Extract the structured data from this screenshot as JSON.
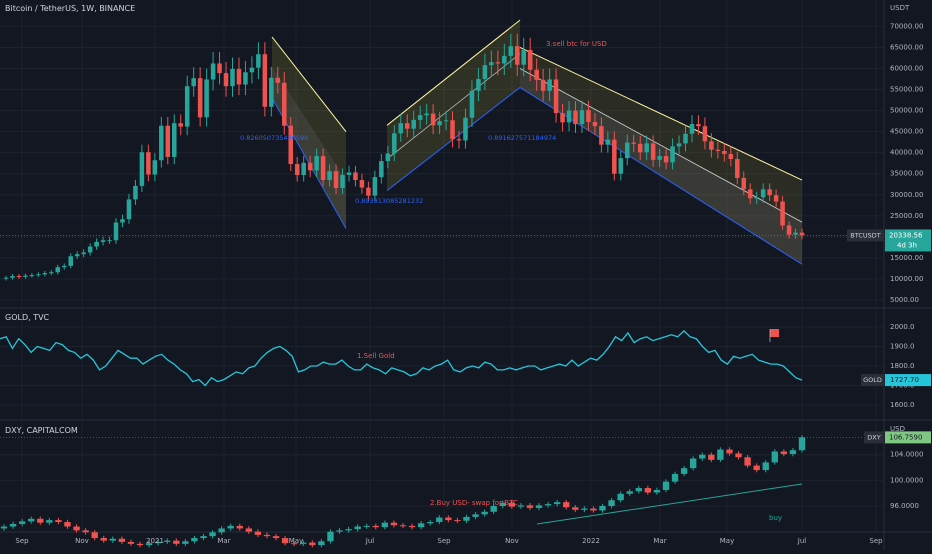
{
  "colors": {
    "background": "#131722",
    "grid": "#1e222d",
    "axis_text": "#b2b5be",
    "up": "#26a69a",
    "down": "#ef5350",
    "gold_line": "#26c6da",
    "annotation_red": "#ef5350",
    "annotation_blue": "#2962ff",
    "annotation_green": "#26a69a"
  },
  "panes": {
    "btc": {
      "title": "Bitcoin / TetherUS, 1W, BINANCE",
      "currency": "USDT",
      "symbol_tag": "BTCUSDT",
      "price_tag": "20338.56",
      "countdown_tag": "4d 3h"
    },
    "gold": {
      "title": "GOLD, TVC",
      "symbol_tag": "GOLD",
      "price_tag": "1727.70"
    },
    "dxy": {
      "title": "DXY, CAPITALCOM",
      "currency": "USD",
      "symbol_tag": "DXY",
      "price_tag": "106.7590"
    }
  },
  "annotations": {
    "sell_btc": "3.sell btc for USD",
    "sell_gold": "1.Sell Gold",
    "buy_usd": "2.Buy USD- swap for BTC",
    "buy": "buy",
    "ratio_1": "0.826050735436590",
    "ratio_2": "0.893913085281232",
    "ratio_3": "0.891627571184974"
  },
  "chart_data": [
    {
      "type": "candlestick",
      "title": "Bitcoin / TetherUS, 1W, BINANCE",
      "ylabel": "USDT",
      "ylim": [
        5000,
        72000
      ],
      "yticks": [
        "70000.00",
        "65000.00",
        "60000.00",
        "55000.00",
        "50000.00",
        "45000.00",
        "40000.00",
        "35000.00",
        "30000.00",
        "25000.00",
        "20000.00",
        "15000.00",
        "10000.00",
        "5000.00"
      ],
      "x_ticks": [
        "Sep",
        "Nov",
        "2021",
        "Mar",
        "May",
        "Jul",
        "Sep",
        "Nov",
        "2022",
        "Mar",
        "May",
        "Jul",
        "Sep"
      ],
      "weekly_close_approx": [
        10300,
        10700,
        10500,
        10800,
        10900,
        11100,
        11400,
        11600,
        12800,
        13100,
        15400,
        15900,
        16300,
        17700,
        18800,
        19200,
        19200,
        23400,
        24200,
        28900,
        32100,
        40100,
        34800,
        38200,
        46400,
        39000,
        47000,
        46200,
        55800,
        57700,
        48400,
        57400,
        61200,
        58900,
        55800,
        59900,
        56200,
        59100,
        60200,
        63400,
        50900,
        57800,
        56600,
        46400,
        37300,
        34700,
        37600,
        35800,
        39200,
        33500,
        35600,
        31600,
        34700,
        35300,
        33500,
        31700,
        29800,
        34200,
        38000,
        39800,
        44600,
        47000,
        45700,
        47800,
        48900,
        49300,
        46500,
        47500,
        47700,
        43200,
        42900,
        48300,
        54700,
        57500,
        60800,
        61500,
        61200,
        63000,
        65300,
        60900,
        64400,
        59700,
        57300,
        54700,
        57400,
        49400,
        47200,
        50000,
        46800,
        50100,
        47300,
        46300,
        41900,
        43100,
        35000,
        38700,
        42400,
        42100,
        40100,
        42200,
        38300,
        39200,
        37700,
        41500,
        42200,
        44500,
        46800,
        46300,
        42700,
        40700,
        40400,
        39700,
        38500,
        34000,
        31300,
        29200,
        29400,
        31300,
        29900,
        28400,
        22700,
        20500,
        21000,
        20338
      ]
    },
    {
      "type": "line",
      "title": "GOLD, TVC",
      "ylim": [
        1600,
        2000
      ],
      "yticks": [
        "2000.0",
        "1900.0",
        "1800.0",
        "1700.0",
        "1600.0"
      ],
      "values_approx": [
        1940,
        1950,
        1890,
        1940,
        1910,
        1870,
        1900,
        1890,
        1880,
        1920,
        1910,
        1880,
        1870,
        1840,
        1860,
        1830,
        1780,
        1800,
        1840,
        1880,
        1860,
        1840,
        1840,
        1810,
        1830,
        1850,
        1860,
        1830,
        1810,
        1780,
        1760,
        1720,
        1730,
        1700,
        1740,
        1720,
        1730,
        1750,
        1770,
        1760,
        1790,
        1800,
        1840,
        1870,
        1890,
        1900,
        1880,
        1850,
        1770,
        1780,
        1800,
        1800,
        1820,
        1810,
        1810,
        1830,
        1800,
        1780,
        1780,
        1810,
        1790,
        1780,
        1760,
        1790,
        1780,
        1770,
        1750,
        1760,
        1790,
        1780,
        1800,
        1810,
        1830,
        1780,
        1770,
        1790,
        1800,
        1790,
        1820,
        1810,
        1780,
        1780,
        1790,
        1780,
        1790,
        1800,
        1800,
        1780,
        1790,
        1800,
        1810,
        1800,
        1830,
        1800,
        1820,
        1840,
        1830,
        1860,
        1900,
        1950,
        1930,
        1970,
        1920,
        1940,
        1950,
        1930,
        1940,
        1950,
        1960,
        1950,
        1980,
        1950,
        1940,
        1900,
        1870,
        1880,
        1830,
        1810,
        1850,
        1840,
        1850,
        1860,
        1830,
        1820,
        1810,
        1810,
        1800,
        1770,
        1740,
        1727.7
      ]
    },
    {
      "type": "candlestick",
      "title": "DXY, CAPITALCOM",
      "ylabel": "USD",
      "ylim": [
        93,
        107
      ],
      "yticks": [
        "104.0000",
        "100.0000",
        "96.0000"
      ],
      "weekly_close_approx": [
        92.8,
        93.2,
        93.6,
        94.0,
        93.4,
        93.8,
        93.5,
        92.8,
        92.2,
        91.9,
        91.0,
        90.6,
        90.9,
        90.4,
        90.1,
        89.9,
        90.2,
        90.4,
        90.6,
        90.1,
        90.5,
        91.0,
        91.3,
        91.9,
        92.5,
        92.9,
        92.5,
        92.0,
        91.5,
        91.3,
        91.0,
        90.2,
        90.1,
        90.3,
        89.9,
        90.5,
        92.0,
        92.2,
        92.4,
        92.8,
        92.9,
        92.7,
        93.4,
        93.0,
        92.9,
        92.7,
        93.3,
        93.5,
        94.2,
        93.8,
        93.7,
        94.3,
        94.7,
        95.1,
        96.0,
        96.5,
        95.9,
        96.1,
        95.7,
        96.1,
        96.3,
        96.6,
        95.8,
        95.4,
        95.6,
        95.3,
        96.0,
        96.9,
        97.9,
        98.3,
        98.8,
        98.1,
        98.5,
        99.8,
        101.0,
        101.9,
        103.4,
        104.0,
        103.2,
        104.8,
        104.2,
        103.6,
        102.3,
        101.6,
        102.8,
        104.5,
        104.1,
        104.7,
        106.7
      ]
    }
  ]
}
